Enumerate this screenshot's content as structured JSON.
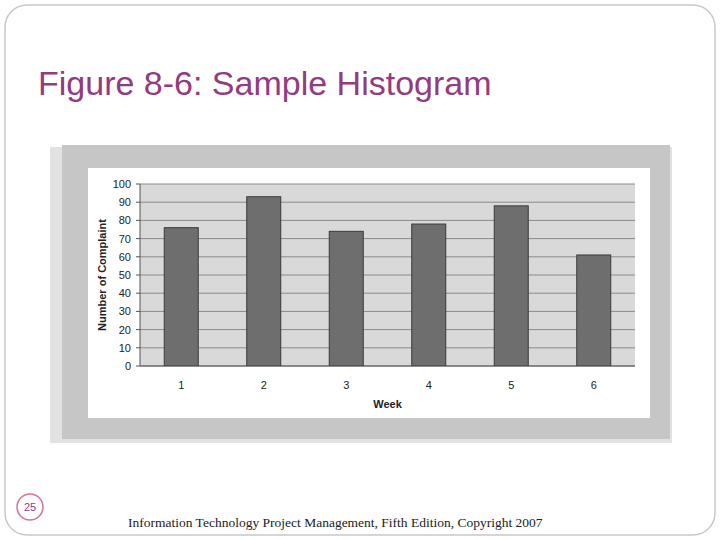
{
  "chart_data": {
    "type": "bar",
    "title": "Figure 8-6: Sample Histogram",
    "x_label": "Week",
    "y_label": "Number of Complaint",
    "categories": [
      "1",
      "2",
      "3",
      "4",
      "5",
      "6"
    ],
    "values": [
      76,
      93,
      74,
      78,
      88,
      61
    ],
    "color": "#6e6e6e",
    "ylim": [
      0,
      100
    ],
    "yticks": [
      0,
      10,
      20,
      30,
      40,
      50,
      60,
      70,
      80,
      90,
      100
    ],
    "grid": true
  },
  "slide": {
    "number": 25,
    "footer": "Information Technology Project Management, Fifth Edition, Copyright 2007"
  }
}
